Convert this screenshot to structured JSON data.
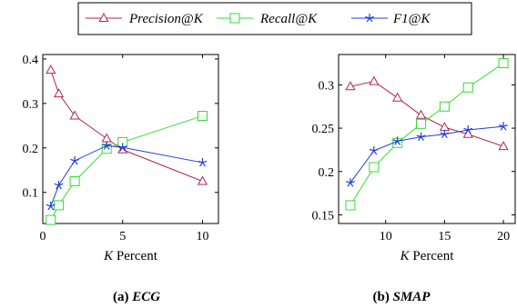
{
  "legend": [
    {
      "label": "Precision@K",
      "color": "#b0264f",
      "marker": "triangle"
    },
    {
      "label": "Recall@K",
      "color": "#33dd33",
      "marker": "square"
    },
    {
      "label": "F1@K",
      "color": "#1f3fd6",
      "marker": "star"
    }
  ],
  "captions": [
    {
      "prefix": "(a)",
      "name": "ECG"
    },
    {
      "prefix": "(b)",
      "name": "SMAP"
    }
  ],
  "chart_data": [
    {
      "type": "line",
      "xlabel_var": "K",
      "xlabel_rest": " Percent",
      "xlim": [
        0,
        11
      ],
      "ylim": [
        0.03,
        0.41
      ],
      "xticks": [
        0,
        5,
        10
      ],
      "yticks": [
        0.1,
        0.2,
        0.3,
        0.4
      ],
      "ytick_labels": [
        "0.1",
        "0.2",
        "0.3",
        "0.4"
      ],
      "series": [
        {
          "name": "Precision@K",
          "x": [
            0.5,
            1,
            2,
            4,
            5,
            10
          ],
          "y": [
            0.375,
            0.322,
            0.272,
            0.221,
            0.196,
            0.125
          ]
        },
        {
          "name": "Recall@K",
          "x": [
            0.5,
            1,
            2,
            4,
            5,
            10
          ],
          "y": [
            0.038,
            0.071,
            0.125,
            0.198,
            0.213,
            0.272
          ]
        },
        {
          "name": "F1@K",
          "x": [
            0.5,
            1,
            2,
            4,
            5,
            10
          ],
          "y": [
            0.069,
            0.116,
            0.171,
            0.205,
            0.201,
            0.167
          ]
        }
      ]
    },
    {
      "type": "line",
      "xlabel_var": "K",
      "xlabel_rest": " Percent",
      "xlim": [
        6,
        21
      ],
      "ylim": [
        0.14,
        0.335
      ],
      "xticks": [
        10,
        15,
        20
      ],
      "yticks": [
        0.15,
        0.2,
        0.25,
        0.3
      ],
      "ytick_labels": [
        "0.15",
        "0.2",
        "0.25",
        "0.3"
      ],
      "series": [
        {
          "name": "Precision@K",
          "x": [
            7,
            9,
            11,
            13,
            15,
            17,
            20
          ],
          "y": [
            0.298,
            0.304,
            0.285,
            0.265,
            0.251,
            0.243,
            0.229
          ]
        },
        {
          "name": "Recall@K",
          "x": [
            7,
            9,
            11,
            13,
            15,
            17,
            20
          ],
          "y": [
            0.161,
            0.205,
            0.233,
            0.255,
            0.275,
            0.297,
            0.325
          ]
        },
        {
          "name": "F1@K",
          "x": [
            7,
            9,
            11,
            13,
            15,
            17,
            20
          ],
          "y": [
            0.187,
            0.224,
            0.235,
            0.24,
            0.243,
            0.248,
            0.252
          ]
        }
      ]
    }
  ]
}
